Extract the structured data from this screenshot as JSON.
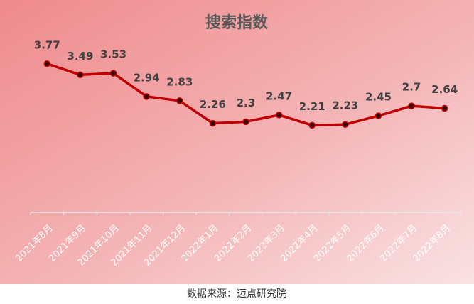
{
  "chart_data": {
    "type": "line",
    "title": "搜索指数",
    "categories": [
      "2021年8月",
      "2021年9月",
      "2021年10月",
      "2021年11月",
      "2021年12月",
      "2022年1月",
      "2022年2月",
      "2022年3月",
      "2022年4月",
      "2022年5月",
      "2022年6月",
      "2022年7月",
      "2022年8月"
    ],
    "series": [
      {
        "name": "搜索指数",
        "color": "#c00000",
        "values": [
          3.77,
          3.49,
          3.53,
          2.94,
          2.83,
          2.26,
          2.3,
          2.47,
          2.21,
          2.23,
          2.45,
          2.7,
          2.64
        ]
      }
    ],
    "ylim": [
      0,
      4
    ],
    "grid": false,
    "source": "数据来源：迈点研究院"
  }
}
